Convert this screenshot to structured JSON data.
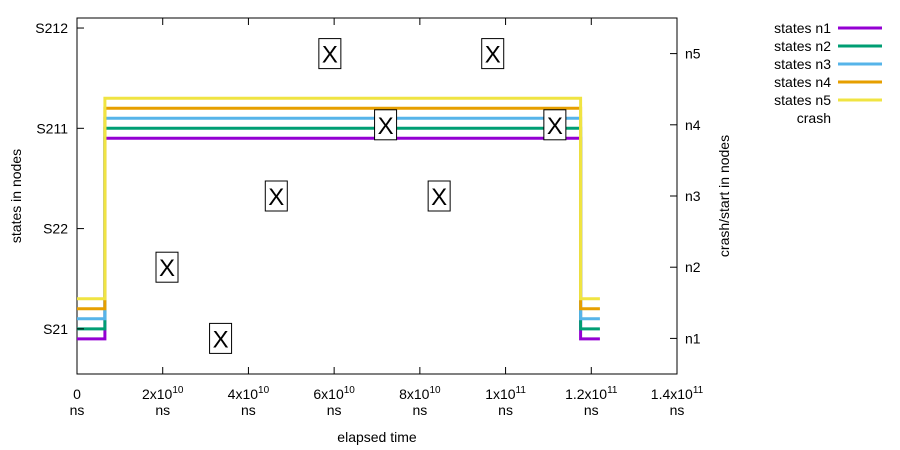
{
  "chart_data": {
    "type": "line",
    "title": "",
    "xlabel": "elapsed time",
    "ylabel": "states in nodes",
    "y2label": "crash/start in nodes",
    "xlim": [
      0,
      140000000000
    ],
    "ylim": [
      0.55,
      4.1
    ],
    "y2lim": [
      0.5,
      5.5
    ],
    "x_ticks": [
      {
        "value": 0,
        "label": "0",
        "unit": "ns"
      },
      {
        "value": 20000000000,
        "label": "2x10",
        "exp": "10",
        "unit": "ns"
      },
      {
        "value": 40000000000,
        "label": "4x10",
        "exp": "10",
        "unit": "ns"
      },
      {
        "value": 60000000000,
        "label": "6x10",
        "exp": "10",
        "unit": "ns"
      },
      {
        "value": 80000000000,
        "label": "8x10",
        "exp": "10",
        "unit": "ns"
      },
      {
        "value": 100000000000,
        "label": "1x10",
        "exp": "11",
        "unit": "ns"
      },
      {
        "value": 120000000000,
        "label": "1.2x10",
        "exp": "11",
        "unit": "ns"
      },
      {
        "value": 140000000000,
        "label": "1.4x10",
        "exp": "11",
        "unit": "ns"
      }
    ],
    "y_ticks": [
      {
        "value": 1,
        "label": "S21"
      },
      {
        "value": 2,
        "label": "S22"
      },
      {
        "value": 3,
        "label": "S211"
      },
      {
        "value": 4,
        "label": "S212"
      }
    ],
    "y2_ticks": [
      {
        "value": 1,
        "label": "n1"
      },
      {
        "value": 2,
        "label": "n2"
      },
      {
        "value": 3,
        "label": "n3"
      },
      {
        "value": 4,
        "label": "n4"
      },
      {
        "value": 5,
        "label": "n5"
      }
    ],
    "series": [
      {
        "name": "states n1",
        "color": "#9400d3",
        "points": [
          [
            0,
            0.9
          ],
          [
            6500000000,
            0.9
          ],
          [
            6500000000,
            2.9
          ],
          [
            117500000000,
            2.9
          ],
          [
            117500000000,
            0.9
          ],
          [
            122000000000,
            0.9
          ]
        ]
      },
      {
        "name": "states n2",
        "color": "#009e73",
        "points": [
          [
            0,
            1.0
          ],
          [
            6500000000,
            1.0
          ],
          [
            6500000000,
            3.0
          ],
          [
            117500000000,
            3.0
          ],
          [
            117500000000,
            1.0
          ],
          [
            122000000000,
            1.0
          ]
        ]
      },
      {
        "name": "states n3",
        "color": "#56b4e9",
        "points": [
          [
            0,
            1.1
          ],
          [
            6500000000,
            1.1
          ],
          [
            6500000000,
            3.1
          ],
          [
            117500000000,
            3.1
          ],
          [
            117500000000,
            1.1
          ],
          [
            122000000000,
            1.1
          ]
        ]
      },
      {
        "name": "states n4",
        "color": "#e69f00",
        "points": [
          [
            0,
            1.2
          ],
          [
            6500000000,
            1.2
          ],
          [
            6500000000,
            3.2
          ],
          [
            117500000000,
            3.2
          ],
          [
            117500000000,
            1.2
          ],
          [
            122000000000,
            1.2
          ]
        ]
      },
      {
        "name": "states n5",
        "color": "#f0e442",
        "points": [
          [
            0,
            1.3
          ],
          [
            6500000000,
            1.3
          ],
          [
            6500000000,
            3.3
          ],
          [
            117500000000,
            3.3
          ],
          [
            117500000000,
            1.3
          ],
          [
            122000000000,
            1.3
          ]
        ]
      }
    ],
    "crash_series": {
      "name": "crash",
      "marker": "X",
      "points": [
        [
          33500000000,
          1.0
        ],
        [
          21000000000,
          2.0
        ],
        [
          46500000000,
          3.0
        ],
        [
          84500000000,
          3.0
        ],
        [
          72000000000,
          4.0
        ],
        [
          111500000000,
          4.0
        ],
        [
          59000000000,
          5.0
        ],
        [
          97000000000,
          5.0
        ]
      ]
    },
    "grid": false,
    "legend_position": "top-right-outside"
  }
}
